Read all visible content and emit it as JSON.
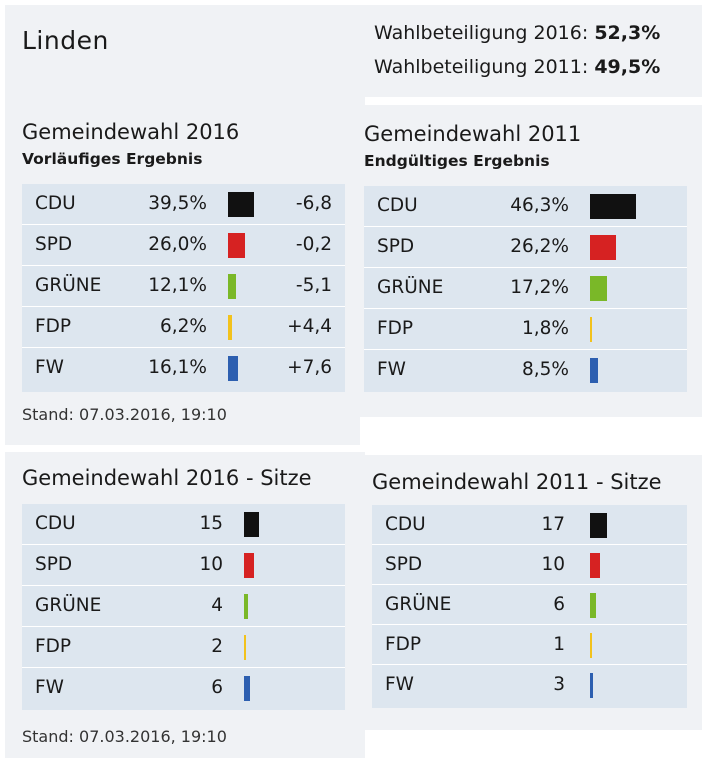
{
  "town": "Linden",
  "turnout": [
    {
      "label": "Wahlbeteiligung 2016:",
      "value": "52,3%"
    },
    {
      "label": "Wahlbeteiligung 2011:",
      "value": "49,5%"
    }
  ],
  "colors": {
    "CDU": "#111111",
    "SPD": "#d62222",
    "GRÜNE": "#7ab828",
    "FDP": "#f2c21c",
    "FW": "#2d5fb0"
  },
  "chart_data": [
    {
      "id": "r2016",
      "type": "table",
      "title": "Gemeindewahl 2016",
      "subtitle": "Vorläufiges Ergebnis",
      "categories": [
        "CDU",
        "SPD",
        "GRÜNE",
        "FDP",
        "FW"
      ],
      "values": [
        39.5,
        26.0,
        12.1,
        6.2,
        16.1
      ],
      "labels": [
        "39,5%",
        "26,0%",
        "12,1%",
        "6,2%",
        "16,1%"
      ],
      "changes": [
        "-6,8",
        "-0,2",
        "-5,1",
        "+4,4",
        "+7,6"
      ],
      "stand": "Stand: 07.03.2016, 19:10"
    },
    {
      "id": "r2011",
      "type": "table",
      "title": "Gemeindewahl 2011",
      "subtitle": "Endgültiges Ergebnis",
      "categories": [
        "CDU",
        "SPD",
        "GRÜNE",
        "FDP",
        "FW"
      ],
      "values": [
        46.3,
        26.2,
        17.2,
        1.8,
        8.5
      ],
      "labels": [
        "46,3%",
        "26,2%",
        "17,2%",
        "1,8%",
        "8,5%"
      ]
    },
    {
      "id": "s2016",
      "type": "table",
      "title": "Gemeindewahl 2016 - Sitze",
      "categories": [
        "CDU",
        "SPD",
        "GRÜNE",
        "FDP",
        "FW"
      ],
      "values": [
        15,
        10,
        4,
        2,
        6
      ],
      "labels": [
        "15",
        "10",
        "4",
        "2",
        "6"
      ],
      "stand": "Stand: 07.03.2016, 19:10"
    },
    {
      "id": "s2011",
      "type": "table",
      "title": "Gemeindewahl 2011 - Sitze",
      "categories": [
        "CDU",
        "SPD",
        "GRÜNE",
        "FDP",
        "FW"
      ],
      "values": [
        17,
        10,
        6,
        1,
        3
      ],
      "labels": [
        "17",
        "10",
        "6",
        "1",
        "3"
      ]
    }
  ]
}
